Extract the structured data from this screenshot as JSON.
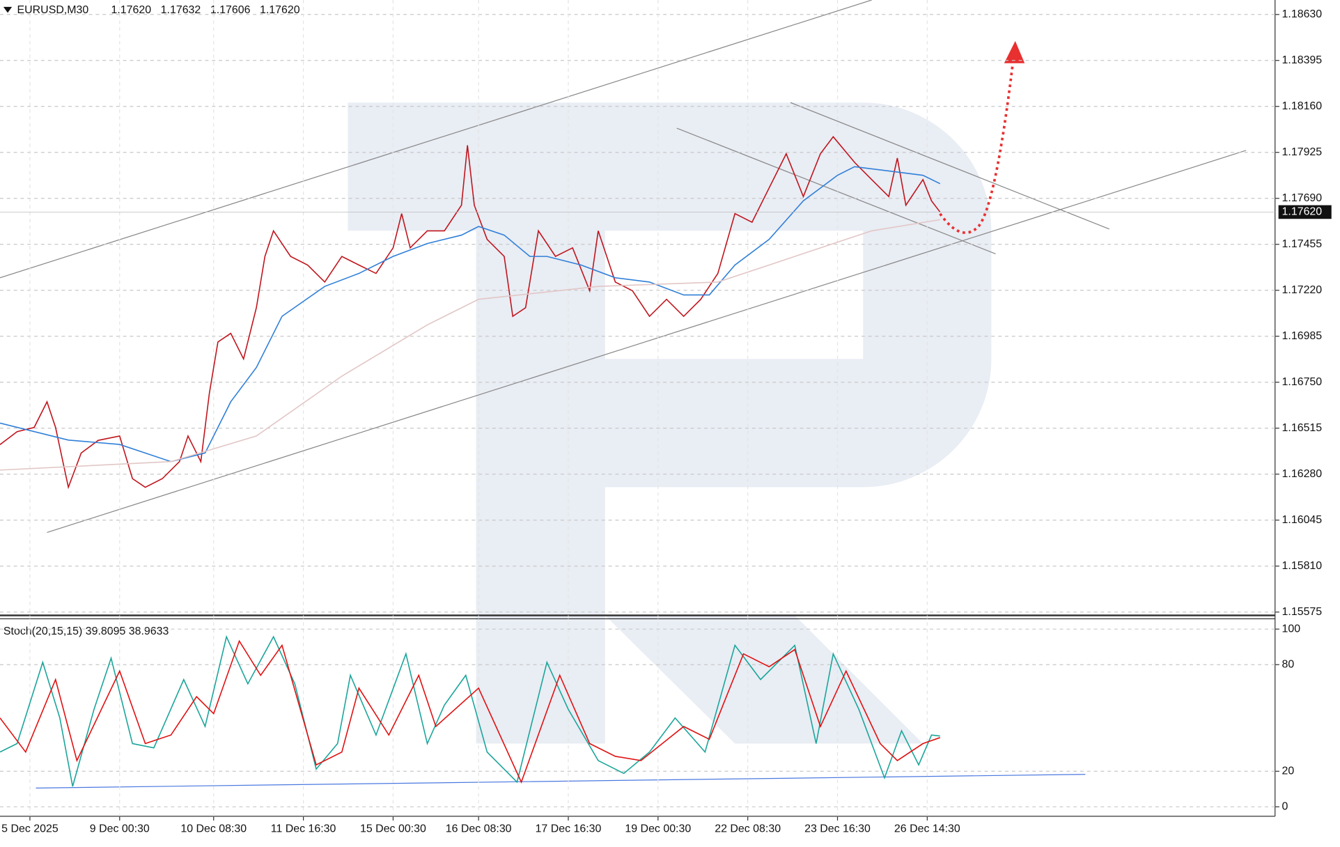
{
  "chart_data": [
    {
      "type": "line",
      "symbol": "EURUSD,M30",
      "ohlc": [
        "1.17620",
        "1.17632",
        "1.17606",
        "1.17620"
      ],
      "price_marker": {
        "value": 1.1762,
        "label": "1.17620"
      },
      "xlim": [
        0,
        149.2
      ],
      "xticks": [
        {
          "value": 3.5,
          "label": "5 Dec 2025"
        },
        {
          "value": 14,
          "label": "9 Dec 00:30"
        },
        {
          "value": 25,
          "label": "10 Dec 08:30"
        },
        {
          "value": 35.5,
          "label": "11 Dec 16:30"
        },
        {
          "value": 46,
          "label": "15 Dec 00:30"
        },
        {
          "value": 56,
          "label": "16 Dec 08:30"
        },
        {
          "value": 66.5,
          "label": "17 Dec 16:30"
        },
        {
          "value": 77,
          "label": "19 Dec 00:30"
        },
        {
          "value": 87.5,
          "label": "22 Dec 08:30"
        },
        {
          "value": 98,
          "label": "23 Dec 16:30"
        },
        {
          "value": 108.5,
          "label": "26 Dec 14:30"
        }
      ],
      "ylim": [
        1.15558,
        1.18704
      ],
      "yticks": [
        {
          "value": 1.1863,
          "label": "1.18630"
        },
        {
          "value": 1.18395,
          "label": "1.18395"
        },
        {
          "value": 1.1816,
          "label": "1.18160"
        },
        {
          "value": 1.17925,
          "label": "1.17925"
        },
        {
          "value": 1.1769,
          "label": "1.17690"
        },
        {
          "value": 1.17455,
          "label": "1.17455"
        },
        {
          "value": 1.1722,
          "label": "1.17220"
        },
        {
          "value": 1.16985,
          "label": "1.16985"
        },
        {
          "value": 1.1675,
          "label": "1.16750"
        },
        {
          "value": 1.16515,
          "label": "1.16515"
        },
        {
          "value": 1.1628,
          "label": "1.16280"
        },
        {
          "value": 1.16045,
          "label": "1.16045"
        },
        {
          "value": 1.1581,
          "label": "1.15810"
        },
        {
          "value": 1.15575,
          "label": "1.15575"
        }
      ],
      "grid": true,
      "series": [
        {
          "color": "#c0141c",
          "x": [
            0,
            2,
            4,
            5.5,
            6.5,
            8,
            9.5,
            11.5,
            14,
            15.5,
            17,
            19,
            21,
            22,
            23.5,
            24.5,
            25.5,
            27,
            28.5,
            30,
            31,
            32,
            34,
            36,
            38,
            40,
            42,
            44,
            46,
            47,
            48,
            50,
            52,
            54,
            54.7,
            55.5,
            57,
            59,
            60,
            61.5,
            63,
            65,
            67,
            69,
            70,
            72,
            74,
            76,
            78,
            80,
            82,
            84,
            86,
            88,
            90,
            92,
            94,
            96,
            97.5,
            100,
            102,
            104,
            105,
            106,
            108,
            109,
            110
          ],
          "values": [
            1.16431,
            1.16497,
            1.16519,
            1.1665,
            1.16519,
            1.16213,
            1.16388,
            1.16453,
            1.16475,
            1.16257,
            1.16213,
            1.16257,
            1.16344,
            1.16475,
            1.16344,
            1.16694,
            1.16956,
            1.17,
            1.16869,
            1.17131,
            1.17393,
            1.17524,
            1.17393,
            1.17349,
            1.17262,
            1.17393,
            1.17349,
            1.17306,
            1.17437,
            1.17612,
            1.17437,
            1.17524,
            1.17524,
            1.17655,
            1.17961,
            1.17655,
            1.1748,
            1.17393,
            1.17087,
            1.17131,
            1.17524,
            1.17393,
            1.17437,
            1.17218,
            1.17524,
            1.17262,
            1.17218,
            1.17087,
            1.17174,
            1.17087,
            1.17174,
            1.17306,
            1.17612,
            1.17568,
            1.17743,
            1.17918,
            1.17699,
            1.17918,
            1.18005,
            1.17874,
            1.17786,
            1.17699,
            1.17896,
            1.17655,
            1.17786,
            1.17677,
            1.1762
          ]
        },
        {
          "color": "#2f7fd8",
          "x": [
            0,
            8,
            14,
            20,
            24,
            27,
            30,
            33,
            38,
            42,
            46,
            50,
            54,
            56,
            59,
            62,
            64,
            68,
            72,
            76,
            80,
            83,
            86,
            90,
            94,
            98,
            100,
            104,
            108,
            110
          ],
          "values": [
            1.16541,
            1.16454,
            1.16432,
            1.16344,
            1.16388,
            1.1665,
            1.16825,
            1.17087,
            1.1724,
            1.17306,
            1.17393,
            1.17459,
            1.17502,
            1.17546,
            1.17502,
            1.17393,
            1.17393,
            1.17349,
            1.17284,
            1.17262,
            1.17196,
            1.17196,
            1.17349,
            1.1748,
            1.17677,
            1.17808,
            1.17852,
            1.1783,
            1.17808,
            1.17765
          ]
        },
        {
          "color": "#e2c6c6",
          "x": [
            0,
            20,
            30,
            40,
            50,
            56,
            70,
            84,
            90,
            96,
            102,
            110
          ],
          "values": [
            1.16301,
            1.16344,
            1.16475,
            1.16781,
            1.17043,
            1.17174,
            1.1724,
            1.17262,
            1.17349,
            1.17437,
            1.17524,
            1.17581
          ]
        }
      ]
    },
    {
      "type": "line",
      "title": "Stoch(20,15,15) 39.8095 38.9633",
      "xlim": [
        0,
        149.2
      ],
      "ylim": [
        -5.3,
        105.8
      ],
      "yticks": [
        0,
        20,
        80,
        100
      ],
      "series": [
        {
          "color": "#1aa59a",
          "x": [
            0,
            2,
            5,
            7,
            8.5,
            11,
            13,
            15.5,
            18,
            21.5,
            24,
            26.5,
            29,
            32,
            34.5,
            37,
            39.5,
            41,
            44,
            47.5,
            50,
            52,
            54.5,
            57,
            60.5,
            64,
            66.5,
            70,
            73,
            76,
            79,
            82.5,
            86,
            89,
            93,
            95.5,
            97.5,
            100.5,
            103.5,
            105.5,
            107.5,
            109,
            110
          ],
          "values": [
            30.8,
            35.6,
            81.3,
            50,
            11.5,
            54.8,
            83.7,
            35.6,
            33.2,
            71.6,
            45.2,
            95.7,
            69.2,
            95.7,
            69.2,
            21.2,
            35.6,
            74,
            40.4,
            86.1,
            35.6,
            57.2,
            74,
            30.8,
            13.9,
            81.3,
            54.8,
            26,
            18.8,
            30.8,
            50,
            30.8,
            90.9,
            71.6,
            90.9,
            35.6,
            86.1,
            54.8,
            16.3,
            42.8,
            23.6,
            40.4,
            39.8
          ]
        },
        {
          "color": "#e01010",
          "x": [
            0,
            3,
            6.5,
            9,
            14,
            17,
            20,
            23,
            25,
            28,
            30.5,
            33,
            37,
            40,
            42,
            45.5,
            49,
            51,
            56,
            61,
            65.5,
            69,
            72,
            75,
            80,
            83,
            87,
            90,
            93,
            96,
            99,
            103,
            105,
            108,
            110
          ],
          "values": [
            50,
            30.8,
            71.6,
            26,
            76.4,
            35.6,
            40.4,
            62,
            52.4,
            93.3,
            74,
            90.9,
            23.6,
            30.8,
            66.8,
            40.4,
            74,
            45.2,
            66.8,
            13.9,
            74,
            35.6,
            28.4,
            26,
            45.2,
            38,
            86.1,
            78.8,
            88.5,
            45.2,
            76.4,
            35.6,
            26,
            35.6,
            38.96
          ]
        }
      ]
    }
  ]
}
